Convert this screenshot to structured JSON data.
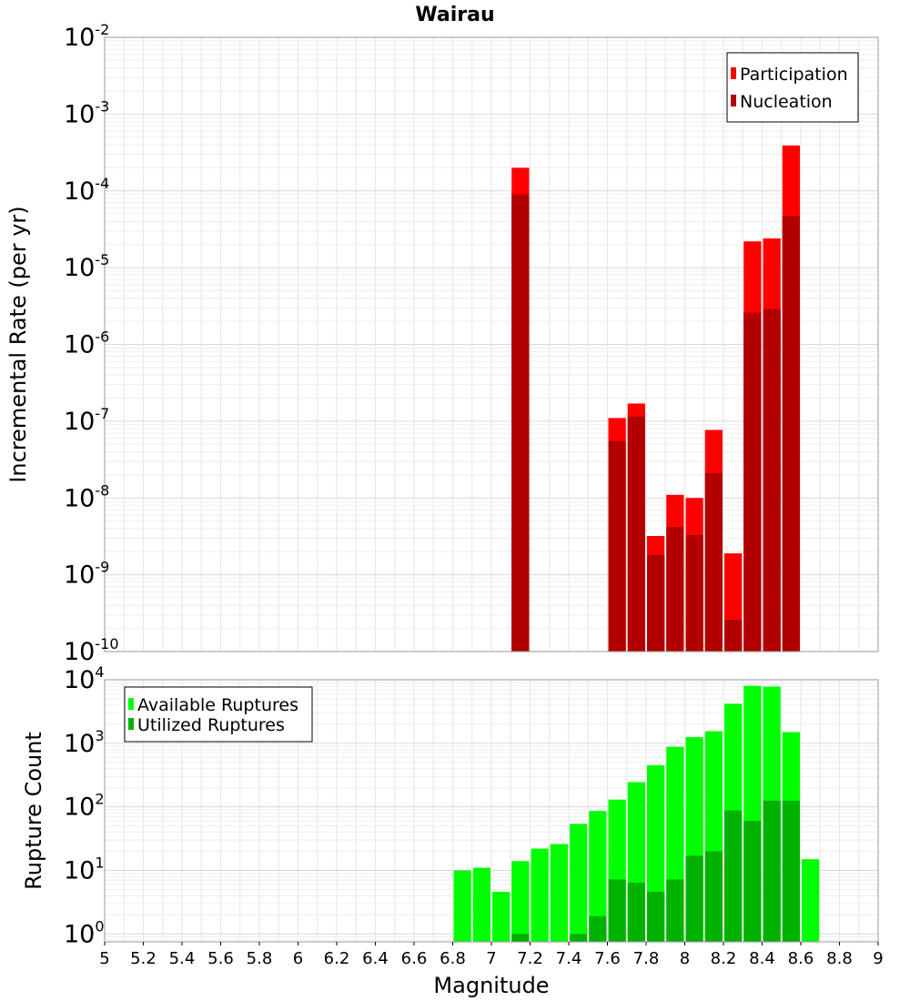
{
  "title": "Wairau",
  "xlabel": "Magnitude",
  "chart_data": [
    {
      "type": "bar",
      "scale": "log",
      "ylabel": "Incremental Rate (per yr)",
      "xlim": [
        5,
        9
      ],
      "ylim": [
        1e-10,
        0.01
      ],
      "grid": true,
      "legend_position": "top-right",
      "y_tick_exponents": [
        -2,
        -3,
        -4,
        -5,
        -6,
        -7,
        -8,
        -9,
        -10
      ],
      "series": [
        {
          "name": "Participation",
          "color": "#ff0000",
          "points": [
            {
              "x": 7.15,
              "y": 0.0002
            },
            {
              "x": 7.65,
              "y": 1.1e-07
            },
            {
              "x": 7.75,
              "y": 1.7e-07
            },
            {
              "x": 7.85,
              "y": 3.2e-09
            },
            {
              "x": 7.95,
              "y": 1.1e-08
            },
            {
              "x": 8.05,
              "y": 1e-08
            },
            {
              "x": 8.15,
              "y": 7.7e-08
            },
            {
              "x": 8.25,
              "y": 1.9e-09
            },
            {
              "x": 8.35,
              "y": 2.2e-05
            },
            {
              "x": 8.45,
              "y": 2.4e-05
            },
            {
              "x": 8.55,
              "y": 0.00039
            }
          ]
        },
        {
          "name": "Nucleation",
          "color": "#b20000",
          "points": [
            {
              "x": 7.15,
              "y": 9e-05
            },
            {
              "x": 7.65,
              "y": 5.5e-08
            },
            {
              "x": 7.75,
              "y": 1.15e-07
            },
            {
              "x": 7.85,
              "y": 1.8e-09
            },
            {
              "x": 7.95,
              "y": 4.2e-09
            },
            {
              "x": 8.05,
              "y": 3.3e-09
            },
            {
              "x": 8.15,
              "y": 2.1e-08
            },
            {
              "x": 8.25,
              "y": 2.6e-10
            },
            {
              "x": 8.35,
              "y": 2.6e-06
            },
            {
              "x": 8.45,
              "y": 2.9e-06
            },
            {
              "x": 8.55,
              "y": 4.7e-05
            }
          ]
        }
      ]
    },
    {
      "type": "bar",
      "scale": "log",
      "ylabel": "Rupture Count",
      "xlim": [
        5,
        9
      ],
      "ylim": [
        0.75,
        10000
      ],
      "grid": true,
      "legend_position": "top-left",
      "y_tick_exponents": [
        4,
        3,
        2,
        1,
        0
      ],
      "series": [
        {
          "name": "Available Ruptures",
          "color": "#00ff00",
          "points": [
            {
              "x": 6.85,
              "y": 10
            },
            {
              "x": 6.95,
              "y": 11
            },
            {
              "x": 7.05,
              "y": 4.6
            },
            {
              "x": 7.15,
              "y": 14
            },
            {
              "x": 7.25,
              "y": 22
            },
            {
              "x": 7.35,
              "y": 26
            },
            {
              "x": 7.45,
              "y": 54
            },
            {
              "x": 7.55,
              "y": 86
            },
            {
              "x": 7.65,
              "y": 130
            },
            {
              "x": 7.75,
              "y": 245
            },
            {
              "x": 7.85,
              "y": 450
            },
            {
              "x": 7.95,
              "y": 880
            },
            {
              "x": 8.05,
              "y": 1250
            },
            {
              "x": 8.15,
              "y": 1550
            },
            {
              "x": 8.25,
              "y": 4200
            },
            {
              "x": 8.35,
              "y": 8000
            },
            {
              "x": 8.45,
              "y": 7800
            },
            {
              "x": 8.55,
              "y": 1500
            },
            {
              "x": 8.65,
              "y": 15
            }
          ]
        },
        {
          "name": "Utilized Ruptures",
          "color": "#00b200",
          "points": [
            {
              "x": 7.15,
              "y": 1
            },
            {
              "x": 7.45,
              "y": 1
            },
            {
              "x": 7.55,
              "y": 1.9
            },
            {
              "x": 7.65,
              "y": 7.2
            },
            {
              "x": 7.75,
              "y": 6.4
            },
            {
              "x": 7.85,
              "y": 4.6
            },
            {
              "x": 7.95,
              "y": 7.2
            },
            {
              "x": 8.05,
              "y": 17
            },
            {
              "x": 8.15,
              "y": 20
            },
            {
              "x": 8.25,
              "y": 88
            },
            {
              "x": 8.35,
              "y": 60
            },
            {
              "x": 8.45,
              "y": 125
            },
            {
              "x": 8.55,
              "y": 125
            }
          ]
        }
      ]
    }
  ],
  "x_ticks": [
    "5",
    "5.2",
    "5.4",
    "5.6",
    "5.8",
    "6",
    "6.2",
    "6.4",
    "6.6",
    "6.8",
    "7",
    "7.2",
    "7.4",
    "7.6",
    "7.8",
    "8",
    "8.2",
    "8.4",
    "8.6",
    "8.8",
    "9"
  ]
}
